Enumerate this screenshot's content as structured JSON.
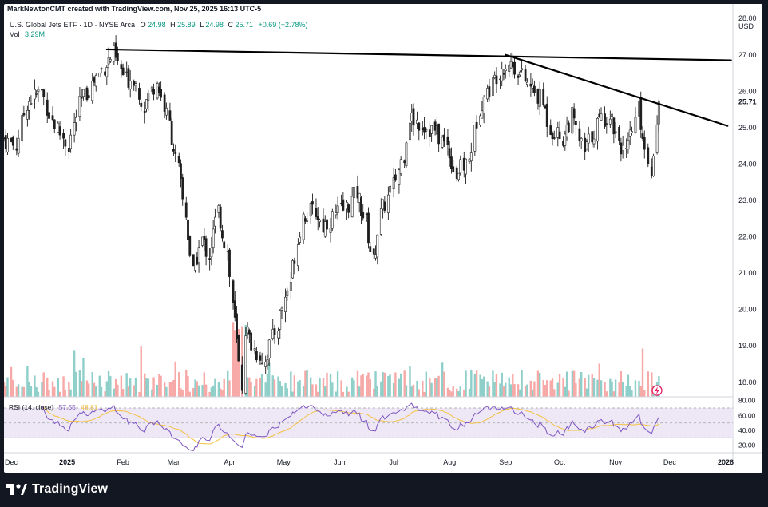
{
  "header": {
    "credit": "MarkNewtonCMT created with TradingView.com, Nov 25, 2025 16:13 UTC-5",
    "symbol_line_prefix": "U.S. Global Jets ETF · 1D · NYSE Arca",
    "ohlc": {
      "o_label": "O",
      "o": "24.98",
      "h_label": "H",
      "h": "25.89",
      "l_label": "L",
      "l": "24.98",
      "c_label": "C",
      "c": "25.71",
      "change": "+0.69 (+2.78%)"
    },
    "vol_label": "Vol",
    "vol_value": "3.29M"
  },
  "price_axis": {
    "currency": "USD",
    "last_price": "25.71",
    "ticks": [
      "28.00",
      "27.00",
      "26.00",
      "25.00",
      "24.00",
      "23.00",
      "22.00",
      "21.00",
      "20.00",
      "19.00",
      "18.00"
    ]
  },
  "rsi_panel": {
    "label": "RSI (14, close)",
    "value_rsi": "57.55",
    "value_ma": "48.81",
    "ticks": [
      "80.00",
      "60.00",
      "40.00",
      "20.00"
    ]
  },
  "time_axis": {
    "labels": [
      "Dec",
      "2025",
      "Feb",
      "Mar",
      "Apr",
      "May",
      "Jun",
      "Jul",
      "Aug",
      "Sep",
      "Oct",
      "Nov",
      "Dec",
      "2026"
    ]
  },
  "footer": {
    "brand": "TradingView"
  },
  "colors": {
    "up": "#1e1e1e",
    "down": "#1e1e1e",
    "vol_up": "#8ecfc9",
    "vol_down": "#f7a9a7",
    "rsi_line": "#7e57c2",
    "rsi_ma": "#f5c242",
    "rsi_band": "#ede7f6",
    "change_up": "#089981",
    "background": "#131722"
  },
  "chart_data": {
    "type": "candlestick",
    "title": "U.S. Global Jets ETF · 1D · NYSE Arca",
    "ylabel": "USD",
    "ylim": [
      17.6,
      28.4
    ],
    "x_range": [
      "2024-11-27",
      "2026-01-05"
    ],
    "x_axis_labels": [
      "Dec",
      "2025",
      "Feb",
      "Mar",
      "Apr",
      "May",
      "Jun",
      "Jul",
      "Aug",
      "Sep",
      "Oct",
      "Nov",
      "Dec",
      "2026"
    ],
    "price_path": [
      [
        "2024-11-27",
        24.7
      ],
      [
        "2024-12-04",
        24.5
      ],
      [
        "2024-12-10",
        25.7
      ],
      [
        "2024-12-18",
        26.0
      ],
      [
        "2024-12-24",
        25.2
      ],
      [
        "2025-01-02",
        24.5
      ],
      [
        "2025-01-08",
        25.6
      ],
      [
        "2025-01-15",
        26.2
      ],
      [
        "2025-01-22",
        26.7
      ],
      [
        "2025-01-27",
        27.0
      ],
      [
        "2025-02-03",
        26.3
      ],
      [
        "2025-02-07",
        26.4
      ],
      [
        "2025-02-13",
        25.6
      ],
      [
        "2025-02-20",
        26.3
      ],
      [
        "2025-02-27",
        25.1
      ],
      [
        "2025-03-04",
        23.8
      ],
      [
        "2025-03-08",
        22.6
      ],
      [
        "2025-03-12",
        21.0
      ],
      [
        "2025-03-17",
        21.9
      ],
      [
        "2025-03-21",
        21.5
      ],
      [
        "2025-03-26",
        22.7
      ],
      [
        "2025-03-31",
        21.6
      ],
      [
        "2025-04-03",
        20.2
      ],
      [
        "2025-04-08",
        17.9
      ],
      [
        "2025-04-10",
        19.5
      ],
      [
        "2025-04-15",
        18.9
      ],
      [
        "2025-04-21",
        18.6
      ],
      [
        "2025-04-28",
        19.6
      ],
      [
        "2025-05-05",
        20.8
      ],
      [
        "2025-05-12",
        22.6
      ],
      [
        "2025-05-19",
        22.7
      ],
      [
        "2025-05-23",
        22.3
      ],
      [
        "2025-05-30",
        22.6
      ],
      [
        "2025-06-05",
        22.8
      ],
      [
        "2025-06-11",
        23.2
      ],
      [
        "2025-06-16",
        22.4
      ],
      [
        "2025-06-20",
        21.3
      ],
      [
        "2025-06-24",
        22.6
      ],
      [
        "2025-07-01",
        23.4
      ],
      [
        "2025-07-07",
        24.3
      ],
      [
        "2025-07-10",
        25.3
      ],
      [
        "2025-07-17",
        25.1
      ],
      [
        "2025-07-24",
        24.9
      ],
      [
        "2025-07-31",
        24.5
      ],
      [
        "2025-08-05",
        23.7
      ],
      [
        "2025-08-12",
        24.1
      ],
      [
        "2025-08-18",
        25.6
      ],
      [
        "2025-08-25",
        26.2
      ],
      [
        "2025-08-29",
        26.6
      ],
      [
        "2025-09-03",
        26.8
      ],
      [
        "2025-09-08",
        26.6
      ],
      [
        "2025-09-15",
        26.1
      ],
      [
        "2025-09-22",
        25.7
      ],
      [
        "2025-09-26",
        25.0
      ],
      [
        "2025-10-03",
        24.7
      ],
      [
        "2025-10-08",
        25.3
      ],
      [
        "2025-10-15",
        24.3
      ],
      [
        "2025-10-22",
        25.1
      ],
      [
        "2025-10-29",
        25.4
      ],
      [
        "2025-11-03",
        24.7
      ],
      [
        "2025-11-07",
        24.2
      ],
      [
        "2025-11-12",
        25.2
      ],
      [
        "2025-11-14",
        25.5
      ],
      [
        "2025-11-19",
        24.1
      ],
      [
        "2025-11-21",
        23.9
      ],
      [
        "2025-11-24",
        25.0
      ],
      [
        "2025-11-25",
        25.71
      ]
    ],
    "trendlines": [
      {
        "from": [
          "2025-01-23",
          27.15
        ],
        "to": [
          "2026-01-04",
          26.85
        ]
      },
      {
        "from": [
          "2025-09-01",
          27.0
        ],
        "to": [
          "2026-01-02",
          25.05
        ]
      }
    ],
    "last_close": 25.71,
    "volume_unit": "M",
    "rsi": {
      "period": 14,
      "last": 57.55,
      "ma_last": 48.81,
      "ylim": [
        10,
        85
      ],
      "band": [
        30,
        70
      ]
    }
  }
}
